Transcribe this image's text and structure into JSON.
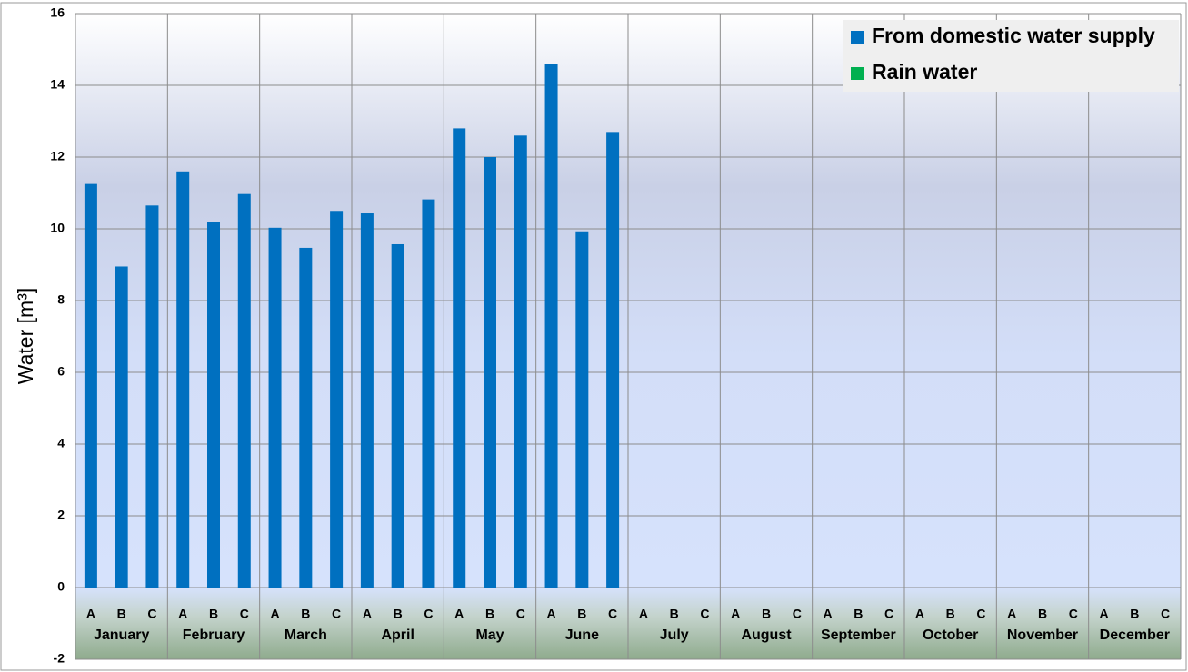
{
  "chart_data": {
    "type": "bar",
    "y_label": "Water [m³]",
    "groups": [
      "January",
      "February",
      "March",
      "April",
      "May",
      "June",
      "July",
      "August",
      "September",
      "October",
      "November",
      "December"
    ],
    "categories": [
      "A",
      "B",
      "C",
      "A",
      "B",
      "C",
      "A",
      "B",
      "C",
      "A",
      "B",
      "C",
      "A",
      "B",
      "C",
      "A",
      "B",
      "C",
      "A",
      "B",
      "C",
      "A",
      "B",
      "C",
      "A",
      "B",
      "C",
      "A",
      "B",
      "C",
      "A",
      "B",
      "C",
      "A",
      "B",
      "C"
    ],
    "series": [
      {
        "name": "From domestic water supply",
        "color": "#0070c0",
        "values": [
          11.25,
          8.95,
          10.65,
          11.6,
          10.2,
          10.97,
          10.03,
          9.47,
          10.5,
          10.43,
          9.57,
          10.82,
          12.8,
          12.0,
          12.6,
          14.6,
          9.93,
          12.7,
          null,
          null,
          null,
          null,
          null,
          null,
          null,
          null,
          null,
          null,
          null,
          null,
          null,
          null,
          null,
          null,
          null,
          null
        ]
      },
      {
        "name": "Rain water",
        "color": "#00b050",
        "values": [
          null,
          null,
          null,
          null,
          null,
          null,
          null,
          null,
          null,
          null,
          null,
          null,
          null,
          null,
          null,
          null,
          null,
          null,
          null,
          null,
          null,
          null,
          null,
          null,
          null,
          null,
          null,
          null,
          null,
          null,
          null,
          null,
          null,
          null,
          null,
          null
        ]
      }
    ],
    "ylim": [
      -2,
      16
    ],
    "yticks": [
      -2,
      0,
      2,
      4,
      6,
      8,
      10,
      12,
      14,
      16
    ],
    "grid": true,
    "legend": "top-right"
  }
}
